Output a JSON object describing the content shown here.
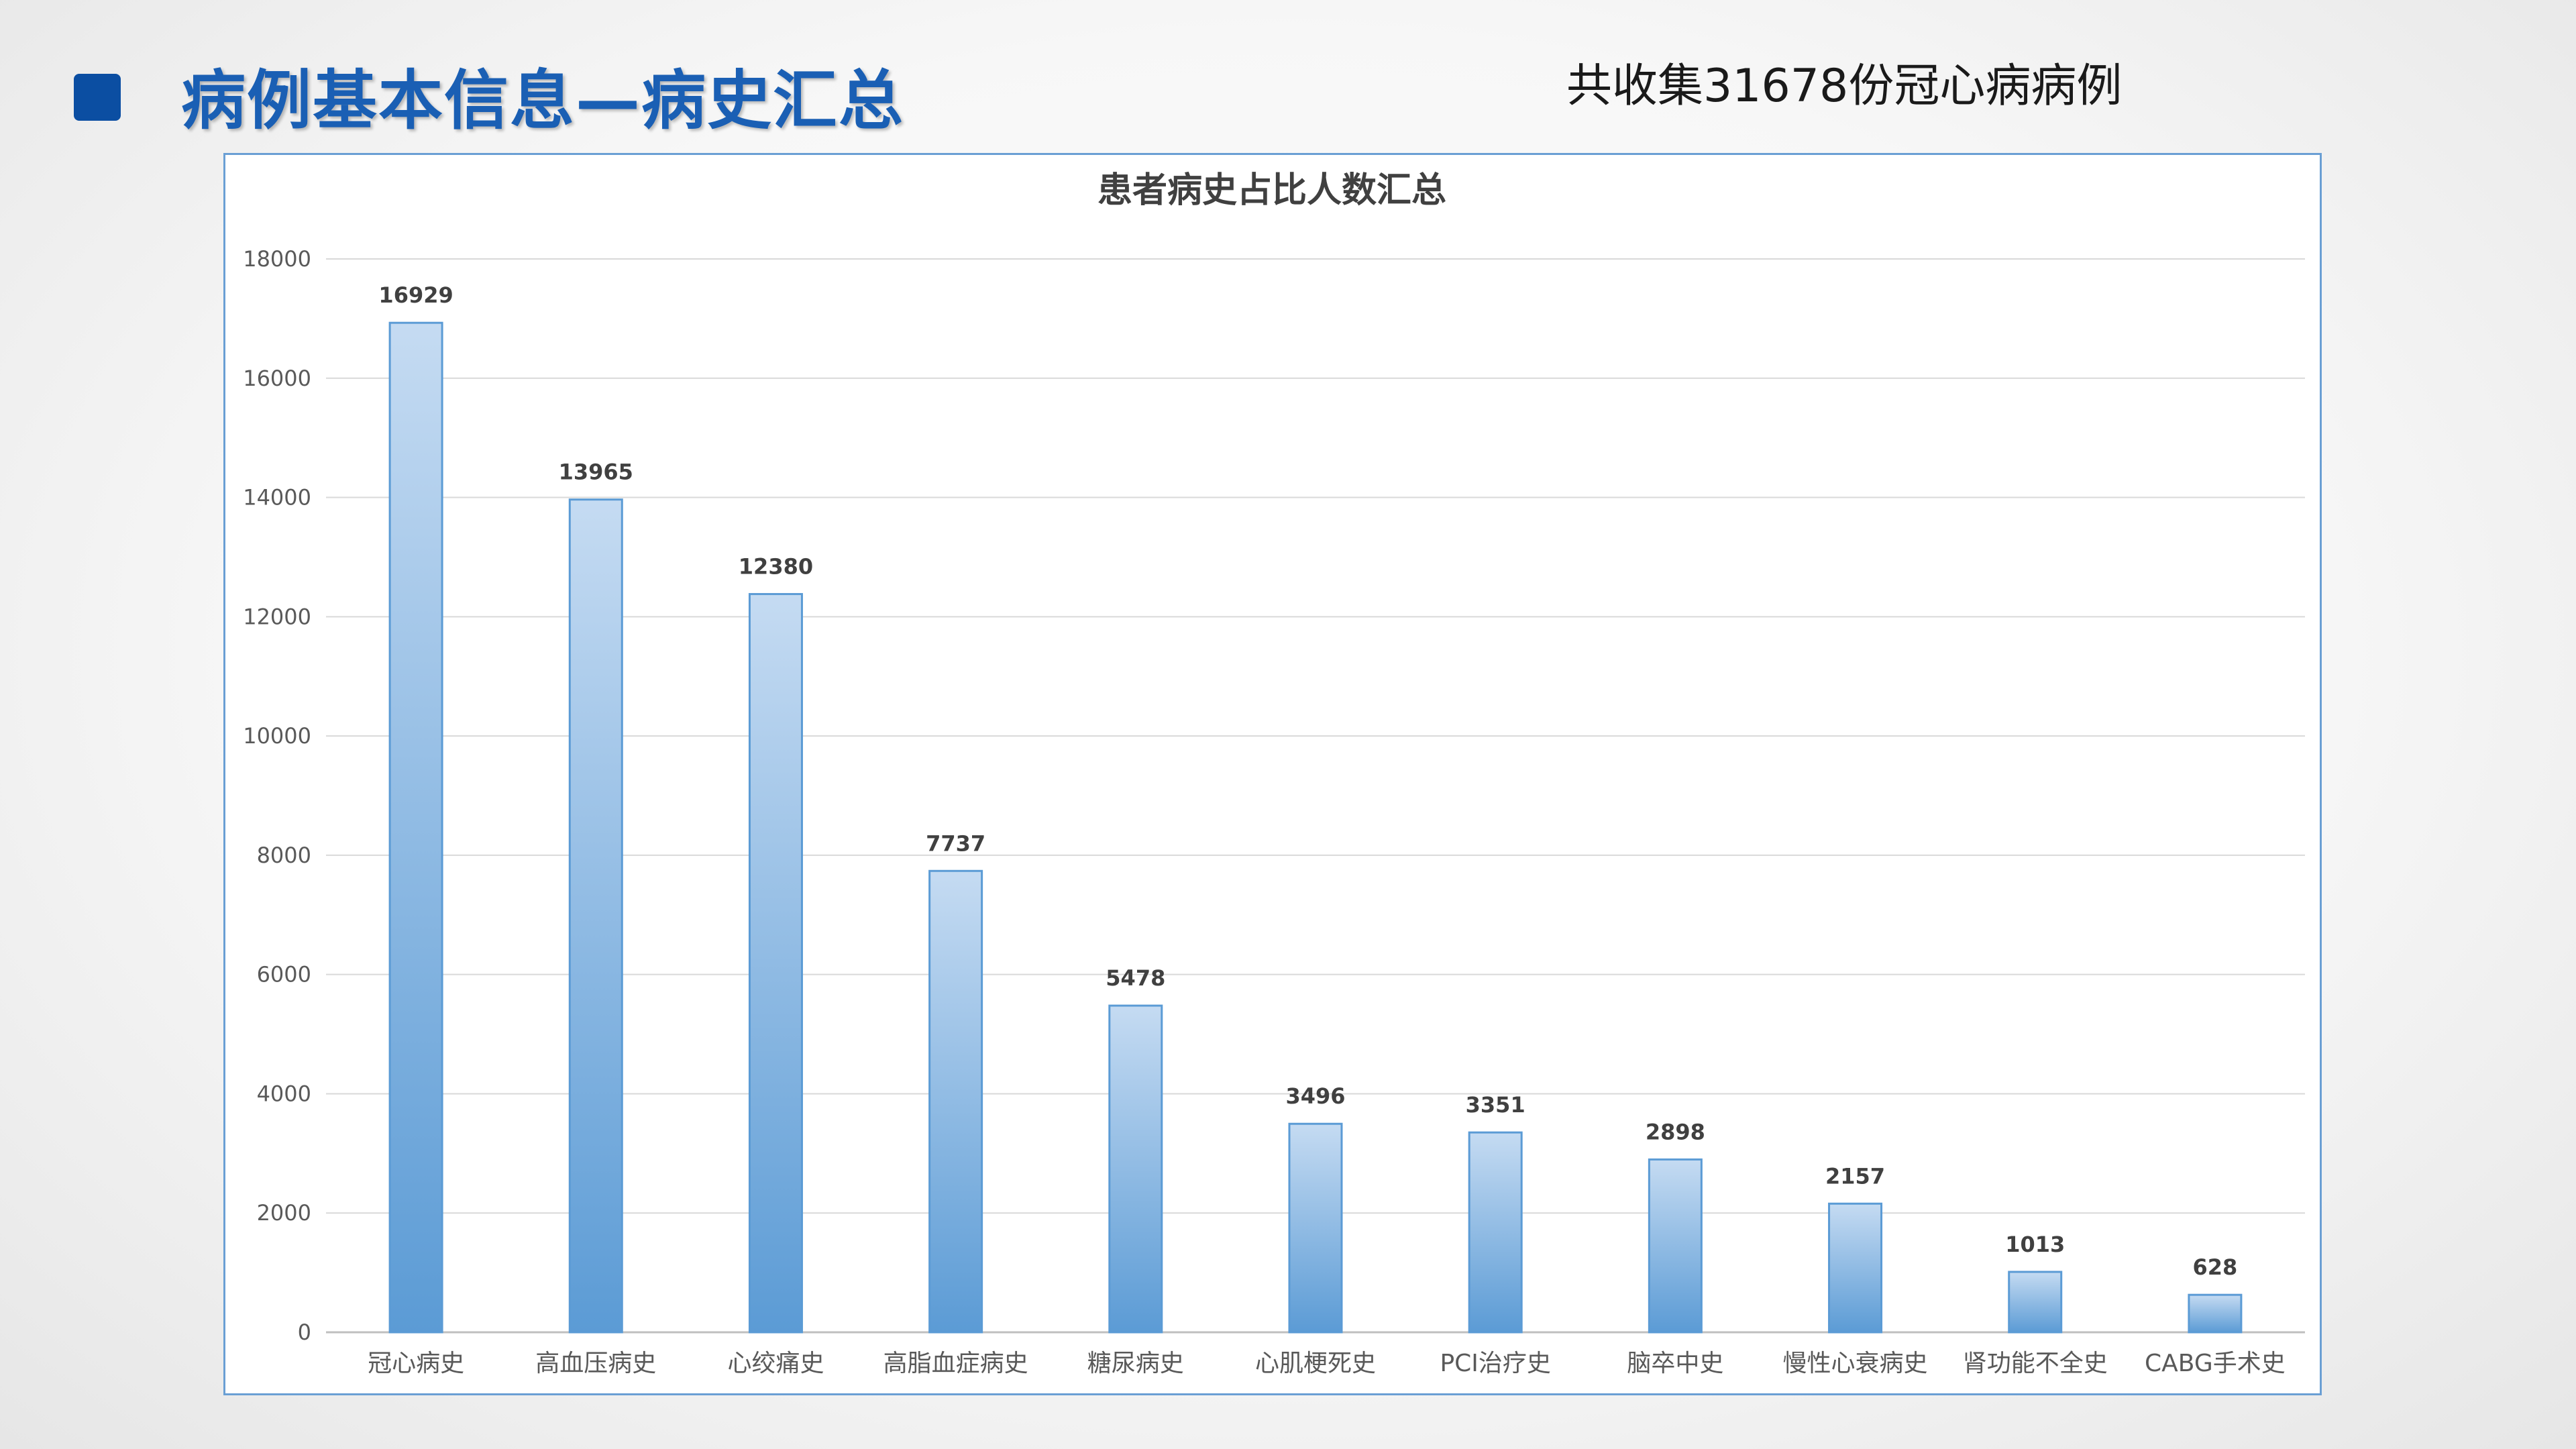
{
  "header": {
    "title": "病例基本信息—病史汇总",
    "note": "共收集31678份冠心病病例"
  },
  "colors": {
    "accent": "#0b4ea2",
    "title_text": "#1a5fb4",
    "bar_top": "#c5dbf2",
    "bar_bottom": "#5b9bd5",
    "chart_border": "#6a9fd4"
  },
  "chart_data": {
    "type": "bar",
    "title": "患者病史占比人数汇总",
    "xlabel": "",
    "ylabel": "",
    "ylim": [
      0,
      18000
    ],
    "yticks": [
      0,
      2000,
      4000,
      6000,
      8000,
      10000,
      12000,
      14000,
      16000,
      18000
    ],
    "grid": true,
    "legend": "none",
    "categories": [
      "冠心病史",
      "高血压病史",
      "心绞痛史",
      "高脂血症病史",
      "糖尿病史",
      "心肌梗死史",
      "PCI治疗史",
      "脑卒中史",
      "慢性心衰病史",
      "肾功能不全史",
      "CABG手术史"
    ],
    "values": [
      16929,
      13965,
      12380,
      7737,
      5478,
      3496,
      3351,
      2898,
      2157,
      1013,
      628
    ]
  }
}
